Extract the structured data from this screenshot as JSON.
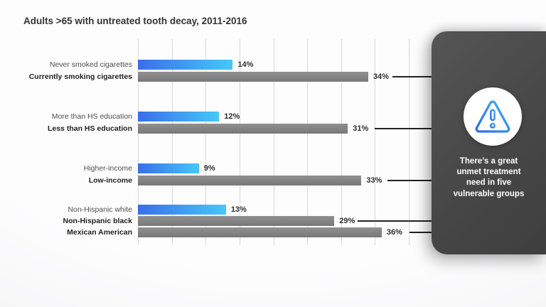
{
  "title": "Adults >65 with untreated tooth decay, 2011-2016",
  "chart_data": {
    "type": "bar",
    "orientation": "horizontal",
    "title": "Adults >65 with untreated tooth decay, 2011-2016",
    "xlim": [
      0,
      40
    ],
    "gridline_step": 5,
    "grid": true,
    "value_suffix": "%",
    "legend": "none",
    "groups": [
      {
        "name": "smoking",
        "bars": [
          {
            "label": "Never smoked cigarettes",
            "value": 14,
            "display": "14%",
            "series": "highlight",
            "callout": false
          },
          {
            "label": "Currently smoking cigarettes",
            "value": 34,
            "display": "34%",
            "series": "vulnerable",
            "callout": true
          }
        ]
      },
      {
        "name": "education",
        "bars": [
          {
            "label": "More than HS education",
            "value": 12,
            "display": "12%",
            "series": "highlight",
            "callout": false
          },
          {
            "label": "Less than HS education",
            "value": 31,
            "display": "31%",
            "series": "vulnerable",
            "callout": true
          }
        ]
      },
      {
        "name": "income",
        "bars": [
          {
            "label": "Higher-income",
            "value": 9,
            "display": "9%",
            "series": "highlight",
            "callout": false
          },
          {
            "label": "Low-income",
            "value": 33,
            "display": "33%",
            "series": "vulnerable",
            "callout": true
          }
        ]
      },
      {
        "name": "race-ethnicity",
        "bars": [
          {
            "label": "Non-Hispanic white",
            "value": 13,
            "display": "13%",
            "series": "highlight",
            "callout": false
          },
          {
            "label": "Non-Hispanic black",
            "value": 29,
            "display": "29%",
            "series": "vulnerable",
            "callout": true
          },
          {
            "label": "Mexican American",
            "value": 36,
            "display": "36%",
            "series": "vulnerable",
            "callout": true
          }
        ]
      }
    ],
    "colors": {
      "highlight_gradient": [
        "#3a6ee8",
        "#45c8f9"
      ],
      "vulnerable_gray": "#828282",
      "gridline": "#d9d9d9",
      "callout_line": "#222222"
    }
  },
  "panel": {
    "message": "There’s a great unmet treatment need in five vulnerable groups",
    "icon": "warning-triangle-icon",
    "bg_color": "#4a4a4a",
    "text_color": "#ffffff",
    "icon_circle_color": "#ffffff",
    "icon_gradient": [
      "#2b6ce6",
      "#41b0f7"
    ]
  }
}
